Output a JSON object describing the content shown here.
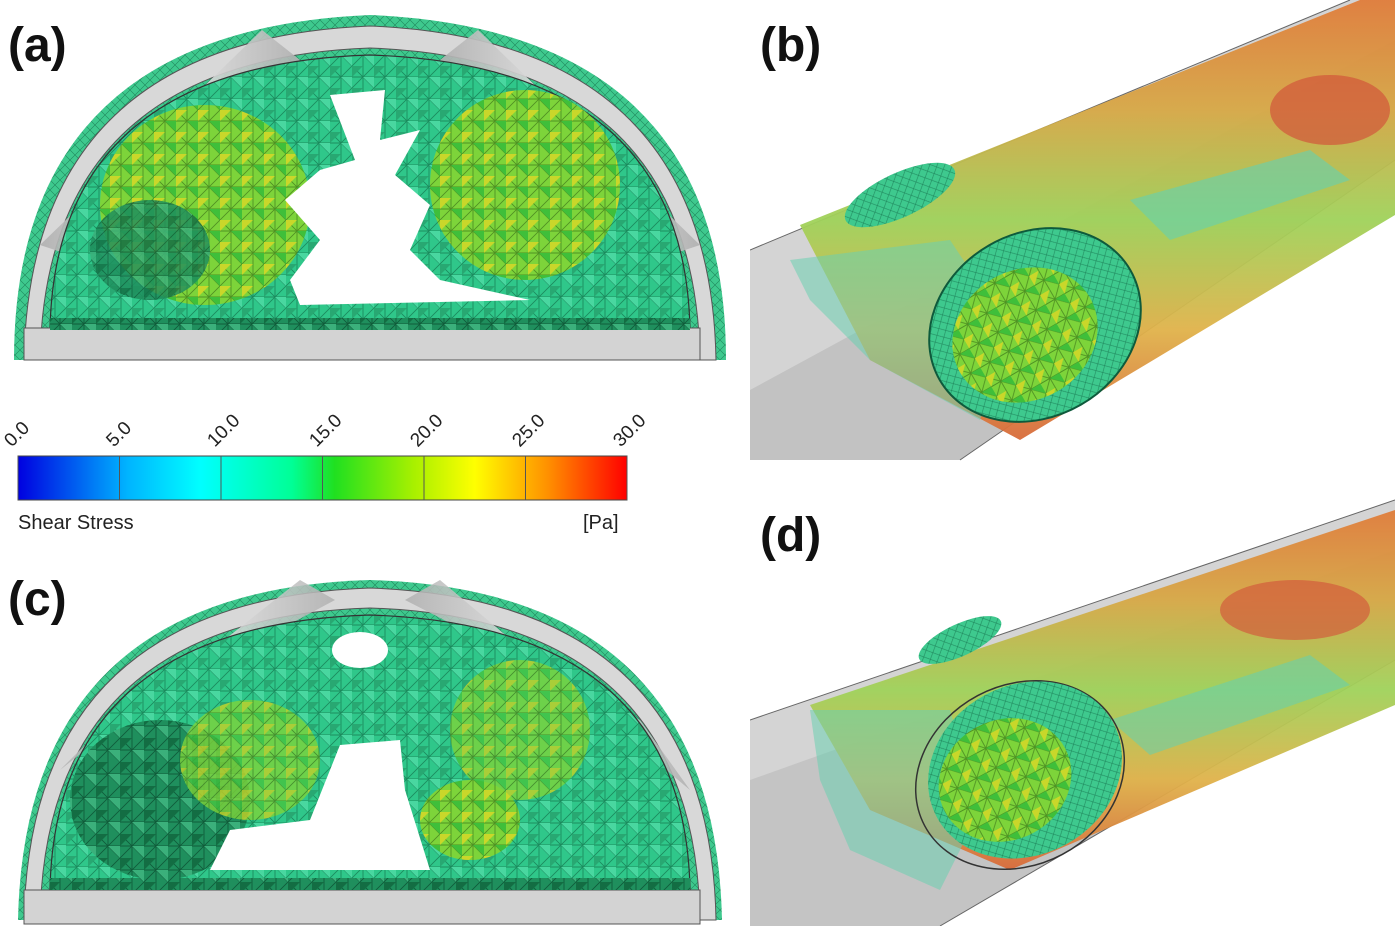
{
  "panels": [
    {
      "id": "a",
      "label": "(a)"
    },
    {
      "id": "b",
      "label": "(b)"
    },
    {
      "id": "c",
      "label": "(c)"
    },
    {
      "id": "d",
      "label": "(d)"
    }
  ],
  "colorbar": {
    "title": "Shear Stress",
    "unit": "[Pa]",
    "ticks": [
      "0.0",
      "5.0",
      "10.0",
      "15.0",
      "20.0",
      "25.0",
      "30.0"
    ],
    "range": [
      0,
      30
    ],
    "colors": [
      "#0000e0",
      "#00c8ff",
      "#00ffff",
      "#00ff80",
      "#40e000",
      "#c0ff00",
      "#ffff00",
      "#ff8000",
      "#ff0000"
    ]
  }
}
